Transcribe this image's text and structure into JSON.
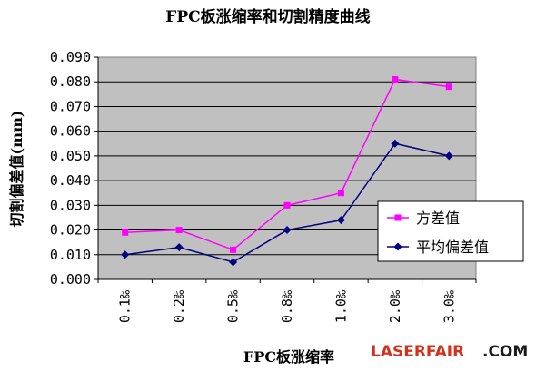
{
  "chart_data": {
    "type": "line",
    "title": "FPC板涨缩率和切割精度曲线",
    "xlabel": "FPC板涨缩率",
    "ylabel": "切割偏差值(mm)",
    "categories": [
      "0.1‰",
      "0.2‰",
      "0.5‰",
      "0.8‰",
      "1.0‰",
      "2.0‰",
      "3.0‰"
    ],
    "y_ticks": [
      "0.000",
      "0.010",
      "0.020",
      "0.030",
      "0.040",
      "0.050",
      "0.060",
      "0.070",
      "0.080",
      "0.090"
    ],
    "ylim": [
      0,
      0.09
    ],
    "grid": "horizontal",
    "legend_position": "right",
    "plot_background": "#c0c0c0",
    "series": [
      {
        "name": "方差值",
        "color": "#ff00ff",
        "marker": "square",
        "values": [
          0.019,
          0.02,
          0.012,
          0.03,
          0.035,
          0.081,
          0.078
        ]
      },
      {
        "name": "平均偏差值",
        "color": "#000080",
        "marker": "diamond",
        "values": [
          0.01,
          0.013,
          0.007,
          0.02,
          0.024,
          0.055,
          0.05
        ]
      }
    ]
  },
  "watermark": {
    "left": "LASERFAIR",
    "right": ".COM",
    "left_color": "#d4301a",
    "right_color": "#1a1a1a"
  }
}
